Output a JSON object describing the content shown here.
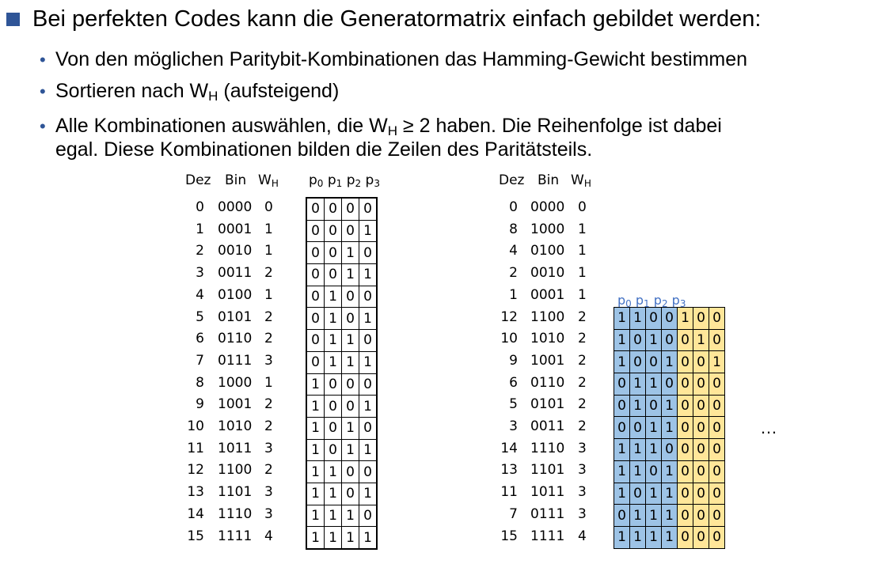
{
  "main_bullet": "Bei perfekten Codes kann die Generatormatrix einfach gebildet werden:",
  "sub_bullets": [
    {
      "text": "Von den möglichen Paritybit-Kombinationen das Hamming-Gewicht bestimmen"
    },
    {
      "pre": "Sortieren nach W",
      "sub": "H",
      "post": " (aufsteigend)"
    },
    {
      "pre": "Alle Kombinationen auswählen, die W",
      "sub": "H",
      "post": " ≥ 2 haben. Die Reihenfolge ist dabei",
      "line2": "egal. Diese Kombinationen bilden die Zeilen des Paritätsteils."
    }
  ],
  "left_table": {
    "headers": {
      "dez": "Dez",
      "bin": "Bin",
      "w": "W",
      "w_sub": "H",
      "p": "p",
      "p_subs": [
        "0",
        "1",
        "2",
        "3"
      ]
    },
    "rows": [
      [
        "0",
        "0000",
        "0"
      ],
      [
        "1",
        "0001",
        "1"
      ],
      [
        "2",
        "0010",
        "1"
      ],
      [
        "3",
        "0011",
        "2"
      ],
      [
        "4",
        "0100",
        "1"
      ],
      [
        "5",
        "0101",
        "2"
      ],
      [
        "6",
        "0110",
        "2"
      ],
      [
        "7",
        "0111",
        "3"
      ],
      [
        "8",
        "1000",
        "1"
      ],
      [
        "9",
        "1001",
        "2"
      ],
      [
        "10",
        "1010",
        "2"
      ],
      [
        "11",
        "1011",
        "3"
      ],
      [
        "12",
        "1100",
        "2"
      ],
      [
        "13",
        "1101",
        "3"
      ],
      [
        "14",
        "1110",
        "3"
      ],
      [
        "15",
        "1111",
        "4"
      ]
    ],
    "bits": [
      [
        "0",
        "0",
        "0",
        "0"
      ],
      [
        "0",
        "0",
        "0",
        "1"
      ],
      [
        "0",
        "0",
        "1",
        "0"
      ],
      [
        "0",
        "0",
        "1",
        "1"
      ],
      [
        "0",
        "1",
        "0",
        "0"
      ],
      [
        "0",
        "1",
        "0",
        "1"
      ],
      [
        "0",
        "1",
        "1",
        "0"
      ],
      [
        "0",
        "1",
        "1",
        "1"
      ],
      [
        "1",
        "0",
        "0",
        "0"
      ],
      [
        "1",
        "0",
        "0",
        "1"
      ],
      [
        "1",
        "0",
        "1",
        "0"
      ],
      [
        "1",
        "0",
        "1",
        "1"
      ],
      [
        "1",
        "1",
        "0",
        "0"
      ],
      [
        "1",
        "1",
        "0",
        "1"
      ],
      [
        "1",
        "1",
        "1",
        "0"
      ],
      [
        "1",
        "1",
        "1",
        "1"
      ]
    ]
  },
  "right_table": {
    "headers": {
      "dez": "Dez",
      "bin": "Bin",
      "w": "W",
      "w_sub": "H"
    },
    "rows": [
      [
        "0",
        "0000",
        "0"
      ],
      [
        "8",
        "1000",
        "1"
      ],
      [
        "4",
        "0100",
        "1"
      ],
      [
        "2",
        "0010",
        "1"
      ],
      [
        "1",
        "0001",
        "1"
      ],
      [
        "12",
        "1100",
        "2"
      ],
      [
        "10",
        "1010",
        "2"
      ],
      [
        "9",
        "1001",
        "2"
      ],
      [
        "6",
        "0110",
        "2"
      ],
      [
        "5",
        "0101",
        "2"
      ],
      [
        "3",
        "0011",
        "2"
      ],
      [
        "14",
        "1110",
        "3"
      ],
      [
        "13",
        "1101",
        "3"
      ],
      [
        "11",
        "1011",
        "3"
      ],
      [
        "7",
        "0111",
        "3"
      ],
      [
        "15",
        "1111",
        "4"
      ]
    ]
  },
  "gen_matrix": {
    "p_label": "p",
    "p_subs": [
      "0",
      "1",
      "2",
      "3"
    ],
    "rows": [
      {
        "p": [
          "1",
          "1",
          "0",
          "0"
        ],
        "u": [
          "1",
          "0",
          "0"
        ]
      },
      {
        "p": [
          "1",
          "0",
          "1",
          "0"
        ],
        "u": [
          "0",
          "1",
          "0"
        ]
      },
      {
        "p": [
          "1",
          "0",
          "0",
          "1"
        ],
        "u": [
          "0",
          "0",
          "1"
        ]
      },
      {
        "p": [
          "0",
          "1",
          "1",
          "0"
        ],
        "u": [
          "0",
          "0",
          "0"
        ]
      },
      {
        "p": [
          "0",
          "1",
          "0",
          "1"
        ],
        "u": [
          "0",
          "0",
          "0"
        ]
      },
      {
        "p": [
          "0",
          "0",
          "1",
          "1"
        ],
        "u": [
          "0",
          "0",
          "0"
        ]
      },
      {
        "p": [
          "1",
          "1",
          "1",
          "0"
        ],
        "u": [
          "0",
          "0",
          "0"
        ]
      },
      {
        "p": [
          "1",
          "1",
          "0",
          "1"
        ],
        "u": [
          "0",
          "0",
          "0"
        ]
      },
      {
        "p": [
          "1",
          "0",
          "1",
          "1"
        ],
        "u": [
          "0",
          "0",
          "0"
        ]
      },
      {
        "p": [
          "0",
          "1",
          "1",
          "1"
        ],
        "u": [
          "0",
          "0",
          "0"
        ]
      },
      {
        "p": [
          "1",
          "1",
          "1",
          "1"
        ],
        "u": [
          "0",
          "0",
          "0"
        ]
      }
    ],
    "ellipsis": "…"
  },
  "colors": {
    "bullet": "#2f5597",
    "parity_fill": "#9dc3e6",
    "unit_fill": "#ffe699",
    "p_header": "#4472c4"
  }
}
